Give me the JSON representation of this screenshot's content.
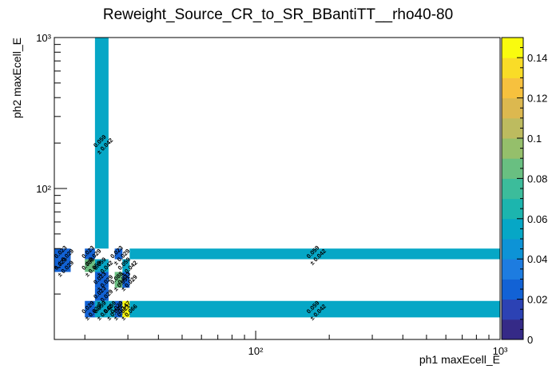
{
  "chart_data": {
    "type": "heatmap",
    "title": "Reweight_Source_CR_to_SR_BBantiTT__rho40-80",
    "xlabel": "ph1 maxEcell_E",
    "ylabel": "ph2 maxEcell_E",
    "x_scale": "log",
    "y_scale": "log",
    "xlim": [
      15,
      1000
    ],
    "ylim": [
      10,
      1000
    ],
    "x_tick_labels": [
      {
        "value": 100,
        "label": "10²"
      },
      {
        "value": 1000,
        "label": "10³"
      }
    ],
    "y_tick_labels": [
      {
        "value": 100,
        "label": "10²"
      },
      {
        "value": 1000,
        "label": "10³"
      }
    ],
    "colorbar": {
      "min": 0,
      "max": 0.15,
      "ticks": [
        "0",
        "0.02",
        "0.04",
        "0.06",
        "0.08",
        "0.1",
        "0.12",
        "0.14"
      ],
      "colors": [
        "#352a87",
        "#2c42b4",
        "#1262d5",
        "#1d7ce0",
        "#0d93d6",
        "#06a7c6",
        "#1cb5ae",
        "#3cbc9b",
        "#69bf81",
        "#95bf6b",
        "#bdbb5f",
        "#dcb84f",
        "#f7c13e",
        "#f9dc27",
        "#f9fb0e"
      ]
    },
    "cells": [
      {
        "x0": 15,
        "x1": 17.5,
        "y0": 34,
        "y1": 40,
        "value": 0.023,
        "error": 0.029
      },
      {
        "x0": 15,
        "x1": 17.5,
        "y0": 28,
        "y1": 34,
        "value": 0.023,
        "error": 0.029
      },
      {
        "x0": 20,
        "x1": 22,
        "y0": 34,
        "y1": 40,
        "value": 0.023,
        "error": 0.029
      },
      {
        "x0": 22,
        "x1": 25,
        "y0": 40,
        "y1": 1000,
        "value": 0.059,
        "error": 0.042
      },
      {
        "x0": 22,
        "x1": 25,
        "y0": 28,
        "y1": 34,
        "value": 0.059,
        "error": 0.042
      },
      {
        "x0": 22,
        "x1": 25,
        "y0": 22,
        "y1": 28,
        "value": 0.023,
        "error": 0.029
      },
      {
        "x0": 22,
        "x1": 25,
        "y0": 18,
        "y1": 22,
        "value": 0.023,
        "error": 0.029
      },
      {
        "x0": 22,
        "x1": 25,
        "y0": 14,
        "y1": 18,
        "value": 0.059,
        "error": 0.042
      },
      {
        "x0": 20,
        "x1": 22,
        "y0": 28,
        "y1": 34,
        "value": 0.088,
        "error": 0.059
      },
      {
        "x0": 20,
        "x1": 22,
        "y0": 14,
        "y1": 18,
        "value": 0.029,
        "error": 0.023
      },
      {
        "x0": 26.5,
        "x1": 28.5,
        "y0": 34,
        "y1": 40,
        "value": 0.023,
        "error": 0.029
      },
      {
        "x0": 25,
        "x1": 26.5,
        "y0": 14,
        "y1": 18,
        "value": 0.059,
        "error": 0.042
      },
      {
        "x0": 26.5,
        "x1": 28.5,
        "y0": 22,
        "y1": 28,
        "value": 0.088,
        "error": 0.051
      },
      {
        "x0": 26.5,
        "x1": 28.5,
        "y0": 14,
        "y1": 18,
        "value": 0.029,
        "error": 0.023
      },
      {
        "x0": 28.5,
        "x1": 30.5,
        "y0": 28,
        "y1": 34,
        "value": 0.059,
        "error": 0.042
      },
      {
        "x0": 28.5,
        "x1": 30.5,
        "y0": 22,
        "y1": 28,
        "value": 0.023,
        "error": 0.029
      },
      {
        "x0": 28.5,
        "x1": 30.5,
        "y0": 14,
        "y1": 18,
        "value": 0.147,
        "error": 0.066
      },
      {
        "x0": 30.5,
        "x1": 1000,
        "y0": 34,
        "y1": 40,
        "value": 0.059,
        "error": 0.042
      },
      {
        "x0": 30.5,
        "x1": 1000,
        "y0": 14,
        "y1": 18,
        "value": 0.059,
        "error": 0.042
      }
    ]
  }
}
